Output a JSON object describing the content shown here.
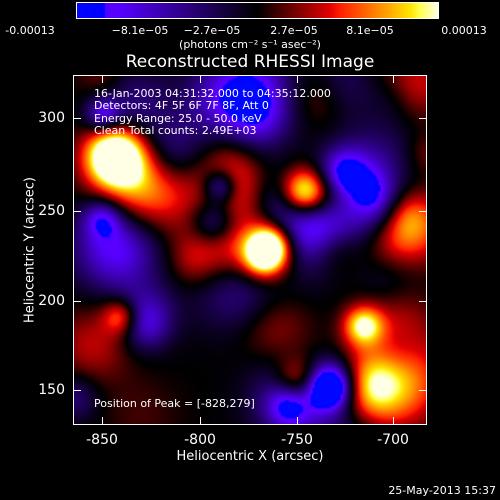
{
  "colorbar": {
    "ticks": [
      "-0.00013",
      "−8.1e−05",
      "−2.7e−05",
      "2.7e−05",
      "8.1e−05",
      "0.00013"
    ],
    "units": "(photons cm⁻² s⁻¹ asec⁻²)",
    "colors": [
      "#0000ff",
      "#4000a0",
      "#000000",
      "#a00000",
      "#ff4000",
      "#ffd000",
      "#ffffff"
    ]
  },
  "title": "Reconstructed RHESSI Image",
  "info": {
    "time": "16-Jan-2003 04:31:32.000 to 04:35:12.000",
    "detectors": "Detectors: 4F 5F 6F 7F 8F, Att 0",
    "energy": "Energy Range: 25.0 - 50.0 keV",
    "clean": "Clean     Total counts: 2.49E+03",
    "peak": "Position of Peak = [-828,279]"
  },
  "axes": {
    "xlabel": "Heliocentric X (arcsec)",
    "ylabel": "Heliocentric Y (arcsec)",
    "xticks": [
      "-850",
      "-800",
      "-750",
      "-700"
    ],
    "yticks": [
      "300",
      "250",
      "200",
      "150"
    ]
  },
  "timestamp": "25-May-2013 15:37"
}
